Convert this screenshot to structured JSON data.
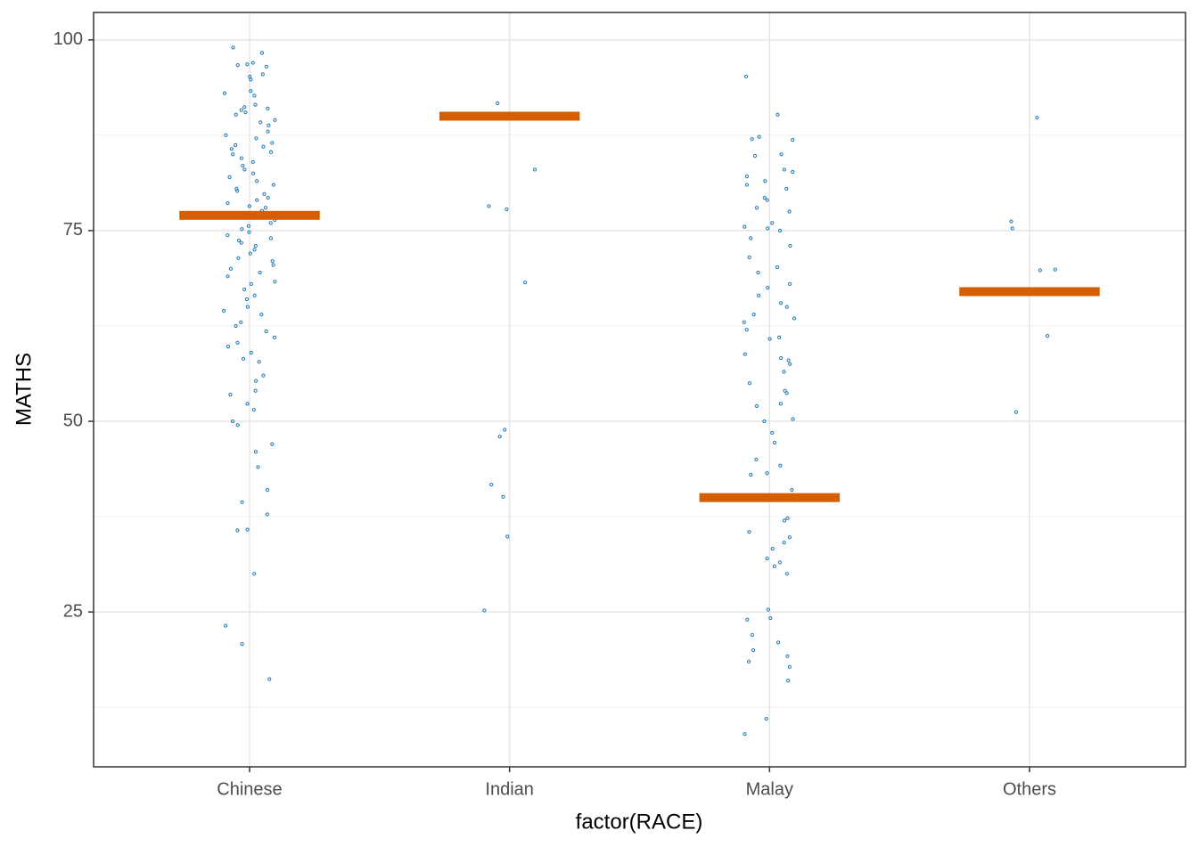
{
  "chart_data": {
    "type": "strip",
    "x_label": "factor(RACE)",
    "y_label": "MATHS",
    "categories": [
      "Chinese",
      "Indian",
      "Malay",
      "Others"
    ],
    "points": [
      [
        99,
        98.3,
        97,
        96.8,
        96.7,
        96.5,
        95.5,
        95.2,
        94.8,
        93.3,
        93,
        92.7,
        91.5,
        91.2,
        91,
        90.8,
        90.5,
        90.2,
        89.5,
        89.2,
        88.8,
        88,
        87.5,
        87.1,
        86.5,
        86.2,
        86,
        85.7,
        85.3,
        85,
        84.5,
        84,
        83.5,
        83,
        82.5,
        82,
        81.5,
        81,
        80.5,
        80.2,
        79.8,
        79.3,
        79,
        78.6,
        78.2,
        78,
        77.6,
        77.2,
        76.8,
        76.4,
        76,
        75.6,
        75.2,
        74.8,
        74.4,
        74,
        73.7,
        73.4,
        73,
        72.5,
        72,
        71.4,
        71,
        70.5,
        70,
        69.5,
        69,
        68.3,
        68,
        67.3,
        66.5,
        66,
        65,
        64.5,
        64,
        63,
        62.5,
        61.8,
        61,
        60.3,
        59.8,
        59,
        58.2,
        57.8,
        56,
        55.3,
        54,
        53.5,
        52.3,
        51.5,
        50,
        49.5,
        47,
        46,
        44,
        41,
        39.4,
        37.8,
        35.8,
        35.7,
        30,
        23.2,
        20.8,
        16.2
      ],
      [
        91.7,
        83,
        78.2,
        77.8,
        68.2,
        48.9,
        48,
        41.7,
        40.1,
        34.9,
        25.2
      ],
      [
        95.2,
        90.2,
        87.3,
        87,
        86.9,
        85,
        84.8,
        83,
        82.7,
        82.1,
        81.5,
        81,
        80.5,
        79.3,
        79,
        78,
        77.5,
        76,
        75.5,
        75.3,
        75,
        74,
        73,
        71.5,
        70.2,
        69.5,
        68,
        67.5,
        66.5,
        65.5,
        65,
        64,
        63.5,
        63,
        62,
        61,
        60.8,
        58.8,
        58.3,
        58,
        57.5,
        56.5,
        55,
        54,
        53.7,
        52.3,
        52,
        50.3,
        50,
        48.5,
        47.2,
        45,
        44.2,
        43.2,
        43,
        41,
        37.3,
        37,
        35.5,
        34.8,
        34.1,
        33.3,
        32,
        31.5,
        31,
        30,
        25.3,
        24.2,
        24,
        22,
        21,
        20,
        19.2,
        18.5,
        17.8,
        16,
        11,
        9
      ],
      [
        89.8,
        76.2,
        75.3,
        69.9,
        69.8,
        61.2,
        51.2
      ]
    ],
    "point_color": "#1f78b4",
    "summary": [
      77,
      90,
      40,
      67
    ],
    "summary_color": "#d55e00",
    "ylim": [
      4.7,
      103.6
    ],
    "yticks": [
      25,
      50,
      75,
      100
    ],
    "minor_yticks": [
      12.5,
      37.5,
      62.5,
      87.5
    ],
    "grid": true
  }
}
